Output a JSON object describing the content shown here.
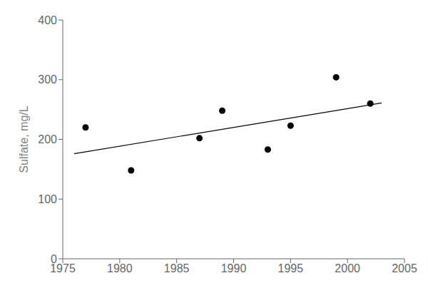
{
  "chart_data": {
    "type": "scatter",
    "ylabel": "Sulfate, mg/L",
    "series": [
      {
        "type": "scatter",
        "x": [
          1977,
          1981,
          1987,
          1989,
          1993,
          1995,
          1999,
          2002
        ],
        "values": [
          220,
          148,
          202,
          248,
          183,
          223,
          304,
          260
        ],
        "color": "#000000",
        "marker": "circle"
      },
      {
        "type": "line",
        "x": [
          1976,
          2003
        ],
        "values": [
          176,
          261
        ],
        "color": "#000000",
        "line_style": "solid"
      }
    ],
    "xlim": [
      1975,
      2005
    ],
    "ylim": [
      0,
      400
    ],
    "xticks": [
      1975,
      1980,
      1985,
      1990,
      1995,
      2000,
      2005
    ],
    "yticks": [
      0,
      100,
      200,
      300,
      400
    ],
    "grid": false
  }
}
